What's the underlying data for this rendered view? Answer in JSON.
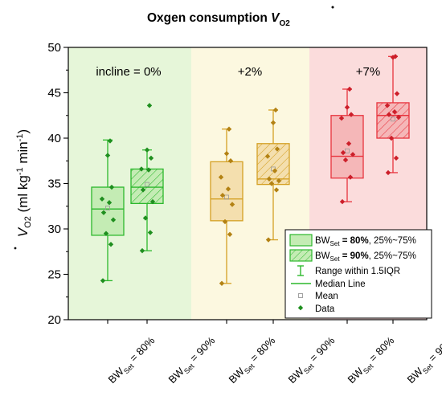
{
  "chart_data": {
    "type": "box",
    "title": "Oxgen consumption V̇O₂",
    "title_main": "Oxgen consumption ",
    "title_var": "V",
    "title_sub": "O2",
    "ylabel_var": "V",
    "ylabel_sub": "O2",
    "ylabel_units_pre": " (ml kg",
    "ylabel_exp1": "-1",
    "ylabel_units_mid": " min",
    "ylabel_exp2": "-1",
    "ylabel_units_post": ")",
    "ylim": [
      20,
      50
    ],
    "yticks": [
      20,
      25,
      30,
      35,
      40,
      45,
      50
    ],
    "yminor": [
      22.5,
      27.5,
      32.5,
      37.5,
      42.5,
      47.5
    ],
    "panels": [
      {
        "label": "incline = 0%",
        "color": "#e6f6d9"
      },
      {
        "label": "+2%",
        "color": "#fcf8e0"
      },
      {
        "label": "+7%",
        "color": "#fbdcdc"
      }
    ],
    "xtick_prefix": "BW",
    "xtick_sub": "Set",
    "groups": [
      {
        "panel": 0,
        "bw": " = 80%",
        "q1": 29.3,
        "median": 32.2,
        "q3": 34.6,
        "whisker_low": 24.3,
        "whisker_high": 39.8,
        "mean": 32.3,
        "points": [
          24.3,
          28.3,
          29.5,
          31.0,
          31.8,
          32.9,
          33.3,
          34.6,
          38.1,
          39.7
        ]
      },
      {
        "panel": 0,
        "bw": " = 90%",
        "q1": 32.8,
        "median": 34.6,
        "q3": 36.6,
        "whisker_low": 27.6,
        "whisker_high": 38.7,
        "mean": 34.9,
        "points": [
          27.6,
          29.6,
          31.2,
          33.0,
          34.3,
          36.5,
          36.6,
          37.8,
          38.7,
          43.6
        ]
      },
      {
        "panel": 1,
        "bw": " = 80%",
        "q1": 30.9,
        "median": 33.3,
        "q3": 37.4,
        "whisker_low": 24.0,
        "whisker_high": 41.0,
        "mean": 33.5,
        "points": [
          24.0,
          29.4,
          30.8,
          32.7,
          33.7,
          34.4,
          35.7,
          37.5,
          38.3,
          41.0
        ]
      },
      {
        "panel": 1,
        "bw": " = 90%",
        "q1": 34.9,
        "median": 35.5,
        "q3": 39.4,
        "whisker_low": 28.8,
        "whisker_high": 43.1,
        "mean": 36.6,
        "points": [
          28.8,
          34.3,
          35.0,
          35.3,
          35.5,
          36.4,
          38.0,
          38.8,
          41.7,
          43.1
        ]
      },
      {
        "panel": 2,
        "bw": " = 80%",
        "q1": 35.6,
        "median": 38.0,
        "q3": 42.5,
        "whisker_low": 33.0,
        "whisker_high": 45.4,
        "mean": 38.6,
        "points": [
          33.0,
          35.7,
          37.6,
          38.2,
          38.4,
          39.4,
          42.2,
          42.6,
          43.4,
          45.4
        ]
      },
      {
        "panel": 2,
        "bw": " = 90%",
        "q1": 40.0,
        "median": 42.5,
        "q3": 43.9,
        "whisker_low": 36.2,
        "whisker_high": 49.0,
        "mean": 42.1,
        "points": [
          36.2,
          37.8,
          40.0,
          42.3,
          42.6,
          42.9,
          43.6,
          44.9,
          48.9,
          49.0
        ]
      }
    ],
    "series_colors": [
      "#2db82d",
      "#d4a024",
      "#e8343e"
    ],
    "legend": {
      "position": "bottom-right",
      "entries": [
        {
          "pre": "BW",
          "sub": "Set",
          "bold": " = 80%",
          "post": ", 25%~75%",
          "kind": "box-solid"
        },
        {
          "pre": "BW",
          "sub": "Set",
          "bold": " = 90%",
          "post": ", 25%~75%",
          "kind": "box-hatched"
        },
        {
          "text": "Range within 1.5IQR",
          "kind": "whisker"
        },
        {
          "text": "Median Line",
          "kind": "median"
        },
        {
          "text": "Mean",
          "kind": "mean"
        },
        {
          "text": "Data",
          "kind": "data"
        }
      ]
    }
  }
}
